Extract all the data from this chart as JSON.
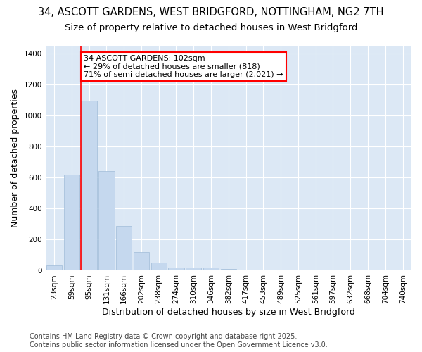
{
  "title_line1": "34, ASCOTT GARDENS, WEST BRIDGFORD, NOTTINGHAM, NG2 7TH",
  "title_line2": "Size of property relative to detached houses in West Bridgford",
  "xlabel": "Distribution of detached houses by size in West Bridgford",
  "ylabel": "Number of detached properties",
  "categories": [
    "23sqm",
    "59sqm",
    "95sqm",
    "131sqm",
    "166sqm",
    "202sqm",
    "238sqm",
    "274sqm",
    "310sqm",
    "346sqm",
    "382sqm",
    "417sqm",
    "453sqm",
    "489sqm",
    "525sqm",
    "561sqm",
    "597sqm",
    "632sqm",
    "668sqm",
    "704sqm",
    "740sqm"
  ],
  "bar_heights": [
    35,
    620,
    1095,
    640,
    290,
    120,
    50,
    22,
    20,
    18,
    12,
    0,
    0,
    0,
    0,
    0,
    0,
    0,
    0,
    0,
    0
  ],
  "bar_color": "#c5d8ee",
  "bar_edge_color": "#a0bcd8",
  "vline_index": 2,
  "annotation_text": "34 ASCOTT GARDENS: 102sqm\n← 29% of detached houses are smaller (818)\n71% of semi-detached houses are larger (2,021) →",
  "annotation_box_color": "white",
  "annotation_box_edge_color": "red",
  "vline_color": "red",
  "ylim": [
    0,
    1450
  ],
  "yticks": [
    0,
    200,
    400,
    600,
    800,
    1000,
    1200,
    1400
  ],
  "plot_bg_color": "#dce8f5",
  "fig_bg_color": "#ffffff",
  "grid_color": "#ffffff",
  "footer_line1": "Contains HM Land Registry data © Crown copyright and database right 2025.",
  "footer_line2": "Contains public sector information licensed under the Open Government Licence v3.0.",
  "title_fontsize": 10.5,
  "subtitle_fontsize": 9.5,
  "axis_label_fontsize": 9,
  "tick_fontsize": 7.5,
  "annot_fontsize": 8,
  "footer_fontsize": 7
}
